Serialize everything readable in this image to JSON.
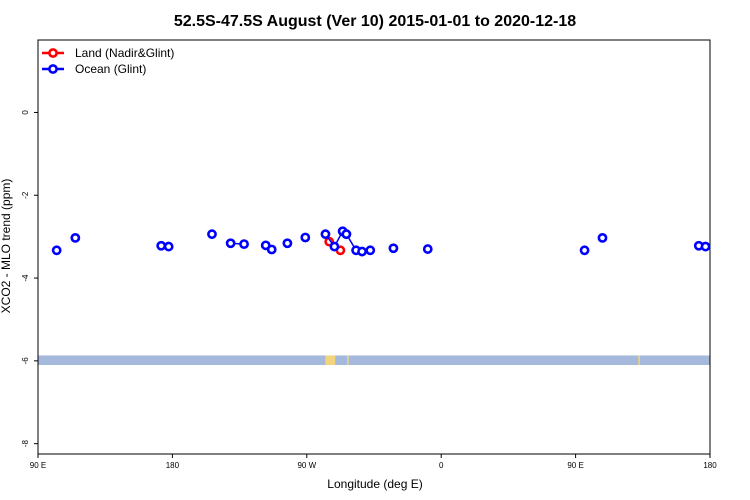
{
  "chart_data": {
    "type": "scatter",
    "title": "52.5S-47.5S August (Ver 10)   2015-01-01 to 2020-12-18",
    "xlabel": "Longitude (deg E)",
    "ylabel": "XCO2 - MLO trend (ppm)",
    "xlim": [
      90,
      540
    ],
    "ylim": [
      -8.25,
      1.75
    ],
    "x_ticks": [
      {
        "value": 90,
        "label": "90 E"
      },
      {
        "value": 180,
        "label": "180"
      },
      {
        "value": 270,
        "label": "90 W"
      },
      {
        "value": 360,
        "label": "0"
      },
      {
        "value": 450,
        "label": "90 E"
      },
      {
        "value": 540,
        "label": "180"
      }
    ],
    "y_ticks": [
      {
        "value": 0,
        "label": "0"
      },
      {
        "value": -2,
        "label": "-2"
      },
      {
        "value": -4,
        "label": "-4"
      },
      {
        "value": -6,
        "label": "-6"
      },
      {
        "value": -8,
        "label": "-8"
      }
    ],
    "legend_position": "top-left",
    "series": [
      {
        "name": "Land (Nadir&Glint)",
        "color": "#ff0000",
        "points": [
          {
            "x": 285.0,
            "y": -3.12
          },
          {
            "x": 292.5,
            "y": -3.33
          }
        ]
      },
      {
        "name": "Ocean (Glint)",
        "color": "#0000ff",
        "points": [
          {
            "x": 102.5,
            "y": -3.33
          },
          {
            "x": 115.0,
            "y": -3.03
          },
          {
            "x": 172.5,
            "y": -3.22
          },
          {
            "x": 177.5,
            "y": -3.24
          },
          {
            "x": 206.5,
            "y": -2.94
          },
          {
            "x": 219.0,
            "y": -3.16
          },
          {
            "x": 228.0,
            "y": -3.18
          },
          {
            "x": 242.5,
            "y": -3.21
          },
          {
            "x": 246.5,
            "y": -3.31
          },
          {
            "x": 257.0,
            "y": -3.16
          },
          {
            "x": 269.0,
            "y": -3.02
          },
          {
            "x": 282.5,
            "y": -2.94
          },
          {
            "x": 288.5,
            "y": -3.24
          },
          {
            "x": 294.0,
            "y": -2.87
          },
          {
            "x": 296.5,
            "y": -2.94
          },
          {
            "x": 296.5,
            "y": -2.94
          },
          {
            "x": 303.0,
            "y": -3.33
          },
          {
            "x": 307.0,
            "y": -3.36
          },
          {
            "x": 312.5,
            "y": -3.33
          },
          {
            "x": 328.0,
            "y": -3.28
          },
          {
            "x": 351.0,
            "y": -3.3
          },
          {
            "x": 456.0,
            "y": -3.33
          },
          {
            "x": 468.0,
            "y": -3.03
          },
          {
            "x": 532.5,
            "y": -3.22
          },
          {
            "x": 537.0,
            "y": -3.24
          }
        ]
      }
    ],
    "land_ocean_band": {
      "y_range": [
        -6.1,
        -5.87
      ],
      "ocean_color": "#a4b9dc",
      "land_color": "#f2d57c",
      "land_segments": [
        [
          282.5,
          289.0
        ],
        [
          297.0,
          298.0
        ],
        [
          492.0,
          493.0
        ]
      ]
    }
  }
}
